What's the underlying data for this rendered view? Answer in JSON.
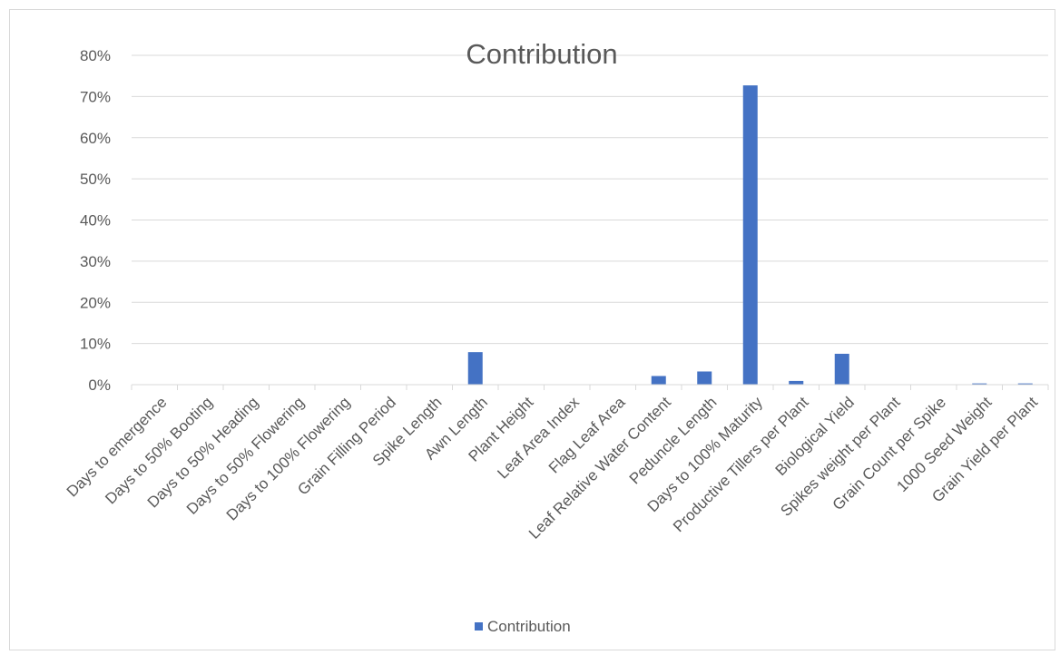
{
  "chart_data": {
    "type": "bar",
    "title": "Contribution",
    "xlabel": "",
    "ylabel": "",
    "ylim": [
      0,
      0.8
    ],
    "y_ticks": [
      0,
      0.1,
      0.2,
      0.3,
      0.4,
      0.5,
      0.6,
      0.7,
      0.8
    ],
    "y_tick_labels": [
      "0%",
      "10%",
      "20%",
      "30%",
      "40%",
      "50%",
      "60%",
      "70%",
      "80%"
    ],
    "grid": true,
    "legend": "bottom",
    "bar_color": "#4472c4",
    "categories": [
      "Days to emergence",
      "Days to 50% Booting",
      "Days to 50% Heading",
      "Days to 50% Flowering",
      "Days to 100% Flowering",
      "Grain Filling Period",
      "Spike Length",
      "Awn Length",
      "Plant Height",
      "Leaf Area Index",
      "Flag Leaf Area",
      "Leaf Relative Water Content",
      "Peduncle Length",
      "Days to 100% Maturity",
      "Productive Tillers per Plant",
      "Biological Yield",
      "Spikes weight per Plant",
      "Grain Count per Spike",
      "1000 Seed Weight",
      "Grain Yield per Plant"
    ],
    "series": [
      {
        "name": "Contribution",
        "values": [
          0,
          0,
          0,
          0,
          0,
          0,
          0,
          0.079,
          0,
          0,
          0,
          0.021,
          0.032,
          0.727,
          0.009,
          0.075,
          0,
          0,
          0.003,
          0.003
        ]
      }
    ]
  }
}
